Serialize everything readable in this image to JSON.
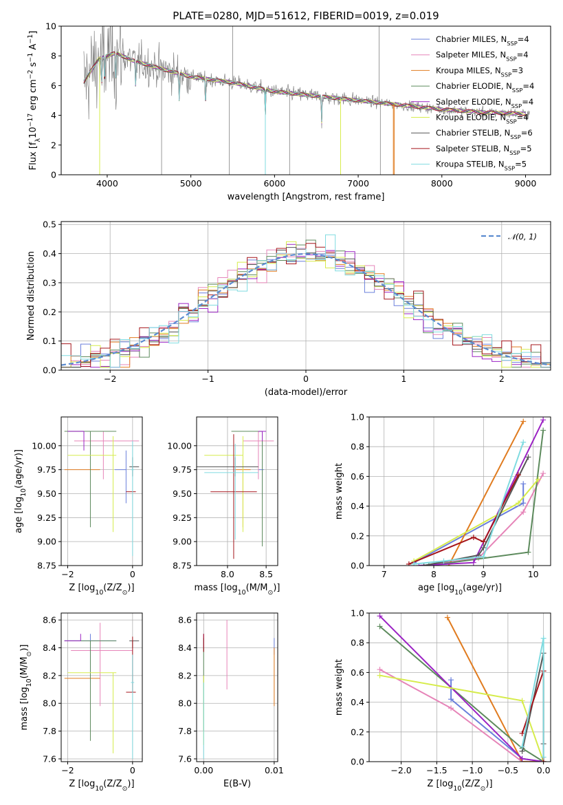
{
  "title": "PLATE=0280, MJD=51612, FIBERID=0019, z=0.019",
  "series_names": [
    {
      "pre": "Chabrier MILES, N",
      "sub": "SSP",
      "post": "=4",
      "color": "#6a7fdb"
    },
    {
      "pre": "Salpeter MILES, N",
      "sub": "SSP",
      "post": "=4",
      "color": "#e684b8"
    },
    {
      "pre": "Kroupa MILES, N",
      "sub": "SSP",
      "post": "=3",
      "color": "#e07b1f"
    },
    {
      "pre": "Chabrier ELODIE, N",
      "sub": "SSP",
      "post": "=4",
      "color": "#5c8a5c"
    },
    {
      "pre": "Salpeter ELODIE, N",
      "sub": "SSP",
      "post": "=4",
      "color": "#9b22c4"
    },
    {
      "pre": "Kroupa ELODIE, N",
      "sub": "SSP",
      "post": "=4",
      "color": "#d6ec4b"
    },
    {
      "pre": "Chabrier STELIB, N",
      "sub": "SSP",
      "post": "=6",
      "color": "#555555"
    },
    {
      "pre": "Salpeter STELIB, N",
      "sub": "SSP",
      "post": "=5",
      "color": "#a5141a"
    },
    {
      "pre": "Kroupa STELIB, N",
      "sub": "SSP",
      "post": "=5",
      "color": "#7fdbe0"
    }
  ],
  "chart_data": [
    {
      "id": "spectrum",
      "type": "line",
      "xlabel": "wavelength [Angstrom, rest frame]",
      "ylabel": {
        "pre": "Flux [f",
        "sub": "λ",
        "mid": "10",
        "sup": "−17",
        "post": " erg cm",
        "sup2": "−2",
        "post2": " s",
        "sup3": "−1",
        "post3": " A",
        "sup4": "−1",
        "post4": "]"
      },
      "xlim": [
        3450,
        9300
      ],
      "ylim": [
        0,
        10
      ],
      "xticks": [
        4000,
        5000,
        6000,
        7000,
        8000,
        9000
      ],
      "yticks": [
        0,
        2,
        4,
        6,
        8,
        10
      ],
      "data_color": "#808080",
      "continuum_knots": {
        "x": [
          3750,
          3900,
          4000,
          4100,
          4300,
          4600,
          4800,
          5000,
          5500,
          6000,
          6500,
          7000,
          7500,
          8000,
          8500,
          9000
        ],
        "y": [
          6.5,
          7.8,
          8.0,
          8.2,
          7.7,
          7.2,
          6.9,
          6.6,
          6.2,
          5.6,
          5.3,
          5.0,
          4.7,
          4.4,
          4.2,
          4.1
        ]
      }
    },
    {
      "id": "residuals",
      "type": "histogram",
      "xlabel": "(data-model)/error",
      "ylabel": "Normed distribution",
      "xlim": [
        -2.5,
        2.5
      ],
      "ylim": [
        0,
        0.51
      ],
      "xticks": [
        -2,
        -1,
        0,
        1,
        2
      ],
      "yticks": [
        0.0,
        0.1,
        0.2,
        0.3,
        0.4,
        0.5
      ],
      "legend": "𝒩(0, 1)",
      "normal_color": "#5b8bd0"
    },
    {
      "id": "age-vs-Z",
      "type": "errorbar",
      "xlabel": {
        "pre": "Z [log",
        "sub": "10",
        "post": "(Z/Z",
        "sub2": "⊙",
        "post2": ")]"
      },
      "ylabel": {
        "pre": "age  [log",
        "sub": "10",
        "post": "(age/yr)]"
      },
      "xlim": [
        -2.2,
        0.3
      ],
      "ylim": [
        8.75,
        10.3
      ],
      "xticks": [
        -2,
        0
      ],
      "yticks": [
        8.75,
        9.0,
        9.25,
        9.5,
        9.75,
        10.0
      ],
      "points": [
        {
          "s": 0,
          "x": -0.2,
          "xe": [
            0.35,
            0.0
          ],
          "y": 9.75,
          "ye": [
            0.35,
            0.2
          ]
        },
        {
          "s": 1,
          "x": -0.9,
          "xe": [
            0.9,
            1.1
          ],
          "y": 10.05,
          "ye": [
            0.4,
            0.1
          ]
        },
        {
          "s": 2,
          "x": -1.0,
          "xe": [
            1.1,
            0.0
          ],
          "y": 9.75,
          "ye": [
            0.0,
            0.0
          ]
        },
        {
          "s": 3,
          "x": -1.3,
          "xe": [
            0.8,
            0.8
          ],
          "y": 10.15,
          "ye": [
            1.0,
            0.0
          ]
        },
        {
          "s": 4,
          "x": -1.5,
          "xe": [
            0.5,
            0.0
          ],
          "y": 10.15,
          "ye": [
            0.2,
            0.0
          ]
        },
        {
          "s": 5,
          "x": -0.6,
          "xe": [
            1.4,
            0.1
          ],
          "y": 9.9,
          "ye": [
            0.8,
            0.2
          ]
        },
        {
          "s": 6,
          "x": 0.0,
          "xe": [
            0.1,
            0.2
          ],
          "y": 9.78,
          "ye": [
            0.1,
            0.1
          ]
        },
        {
          "s": 7,
          "x": 0.0,
          "xe": [
            0.2,
            0.1
          ],
          "y": 9.52,
          "ye": [
            0.0,
            0.0
          ]
        },
        {
          "s": 8,
          "x": 0.0,
          "xe": [
            0.05,
            0.05
          ],
          "y": 9.75,
          "ye": [
            0.9,
            0.3
          ]
        }
      ]
    },
    {
      "id": "age-vs-mass",
      "type": "errorbar",
      "xlabel": {
        "pre": "mass [log",
        "sub": "10",
        "post": "(M/M",
        "sub2": "⊙",
        "post2": ")]"
      },
      "ylabel": "",
      "xlim": [
        7.6,
        8.65
      ],
      "ylim": [
        8.75,
        10.3
      ],
      "xticks": [
        8.0,
        8.5
      ],
      "yticks": [
        8.75,
        9.0,
        9.25,
        9.5,
        9.75,
        10.0
      ],
      "points": [
        {
          "s": 0,
          "x": 8.45,
          "xe": [
            0.05,
            0.02
          ],
          "y": 9.75,
          "ye": [
            0.3,
            0.3
          ]
        },
        {
          "s": 1,
          "x": 8.4,
          "xe": [
            0.2,
            0.2
          ],
          "y": 10.05,
          "ye": [
            0.4,
            0.1
          ]
        },
        {
          "s": 2,
          "x": 8.2,
          "xe": [
            0.1,
            0.1
          ],
          "y": 9.75,
          "ye": [
            0.6,
            0.1
          ]
        },
        {
          "s": 3,
          "x": 8.45,
          "xe": [
            0.4,
            0.0
          ],
          "y": 10.15,
          "ye": [
            1.2,
            0.0
          ]
        },
        {
          "s": 4,
          "x": 8.45,
          "xe": [
            0.05,
            0.05
          ],
          "y": 10.15,
          "ye": [
            0.1,
            0.0
          ]
        },
        {
          "s": 5,
          "x": 8.2,
          "xe": [
            0.5,
            0.0
          ],
          "y": 9.9,
          "ye": [
            0.8,
            0.2
          ]
        },
        {
          "s": 6,
          "x": 8.1,
          "xe": [
            0.5,
            0.3
          ],
          "y": 9.78,
          "ye": [
            0.1,
            0.1
          ]
        },
        {
          "s": 7,
          "x": 8.08,
          "xe": [
            0.3,
            0.3
          ],
          "y": 9.52,
          "ye": [
            0.7,
            0.6
          ]
        },
        {
          "s": 8,
          "x": 8.1,
          "xe": [
            0.4,
            0.3
          ],
          "y": 9.72,
          "ye": [
            0.7,
            0.3
          ]
        }
      ]
    },
    {
      "id": "weight-vs-age",
      "type": "line",
      "xlabel": {
        "pre": "age  [log",
        "sub": "10",
        "post": "(age/yr)]"
      },
      "ylabel": "mass weight",
      "xlim": [
        6.7,
        10.35
      ],
      "ylim": [
        0,
        1.0
      ],
      "xticks": [
        7,
        8,
        9,
        10
      ],
      "yticks": [
        0.0,
        0.2,
        0.4,
        0.6,
        0.8,
        1.0
      ],
      "series": [
        {
          "s": 0,
          "x": [
            7.6,
            9.8,
            9.8
          ],
          "y": [
            0.02,
            0.42,
            0.55
          ]
        },
        {
          "s": 1,
          "x": [
            7.8,
            8.9,
            9.8,
            10.2
          ],
          "y": [
            0.0,
            0.05,
            0.36,
            0.62
          ]
        },
        {
          "s": 2,
          "x": [
            8.3,
            9.8
          ],
          "y": [
            0.0,
            0.97
          ]
        },
        {
          "s": 3,
          "x": [
            7.9,
            9.9,
            10.2
          ],
          "y": [
            0.0,
            0.09,
            0.91
          ]
        },
        {
          "s": 4,
          "x": [
            7.7,
            8.8,
            10.2
          ],
          "y": [
            0.0,
            0.02,
            0.98
          ]
        },
        {
          "s": 5,
          "x": [
            7.6,
            9.7,
            10.1
          ],
          "y": [
            0.03,
            0.42,
            0.58
          ]
        },
        {
          "s": 6,
          "x": [
            7.8,
            8.9,
            9.0,
            9.9
          ],
          "y": [
            0.0,
            0.07,
            0.12,
            0.73
          ]
        },
        {
          "s": 7,
          "x": [
            7.5,
            8.8,
            9.0,
            9.7
          ],
          "y": [
            0.01,
            0.19,
            0.16,
            0.61
          ]
        },
        {
          "s": 8,
          "x": [
            7.6,
            8.2,
            9.0,
            9.8
          ],
          "y": [
            0.01,
            0.03,
            0.06,
            0.83
          ]
        }
      ]
    },
    {
      "id": "mass-vs-Z",
      "type": "errorbar",
      "xlabel": {
        "pre": "Z [log",
        "sub": "10",
        "post": "(Z/Z",
        "sub2": "⊙",
        "post2": ")]"
      },
      "ylabel": {
        "pre": "mass [log",
        "sub": "10",
        "post": "(M/M",
        "sub2": "⊙",
        "post2": ")]"
      },
      "xlim": [
        -2.2,
        0.3
      ],
      "ylim": [
        7.58,
        8.65
      ],
      "xticks": [
        -2,
        0
      ],
      "yticks": [
        7.6,
        7.8,
        8.0,
        8.2,
        8.4,
        8.6
      ],
      "points": [
        {
          "s": 0,
          "x": -1.3,
          "xe": [
            0.8,
            0.8
          ],
          "y": 8.45,
          "ye": [
            0.3,
            0.05
          ]
        },
        {
          "s": 1,
          "x": -1.0,
          "xe": [
            0.9,
            1.0
          ],
          "y": 8.38,
          "ye": [
            0.4,
            0.2
          ]
        },
        {
          "s": 2,
          "x": -1.0,
          "xe": [
            1.1,
            0.0
          ],
          "y": 8.18,
          "ye": [
            0.0,
            0.0
          ]
        },
        {
          "s": 3,
          "x": -1.3,
          "xe": [
            0.8,
            0.8
          ],
          "y": 8.45,
          "ye": [
            0.72,
            0.0
          ]
        },
        {
          "s": 4,
          "x": -1.6,
          "xe": [
            0.5,
            0.0
          ],
          "y": 8.45,
          "ye": [
            0.0,
            0.05
          ]
        },
        {
          "s": 5,
          "x": -0.6,
          "xe": [
            1.4,
            0.1
          ],
          "y": 8.22,
          "ye": [
            0.58,
            0.0
          ]
        },
        {
          "s": 6,
          "x": 0.0,
          "xe": [
            0.1,
            0.2
          ],
          "y": 8.45,
          "ye": [
            0.05,
            0.0
          ]
        },
        {
          "s": 7,
          "x": 0.0,
          "xe": [
            0.2,
            0.1
          ],
          "y": 8.08,
          "ye": [
            0.0,
            0.4
          ]
        },
        {
          "s": 8,
          "x": 0.0,
          "xe": [
            0.05,
            0.05
          ],
          "y": 8.15,
          "ye": [
            0.55,
            0.2
          ]
        }
      ]
    },
    {
      "id": "mass-vs-EBV",
      "type": "errorbar",
      "xlabel": "E(B-V)",
      "ylabel": "",
      "xlim": [
        -0.001,
        0.0105
      ],
      "ylim": [
        7.58,
        8.65
      ],
      "xticks": [
        0.0,
        0.01
      ],
      "yticks": [
        7.6,
        7.8,
        8.0,
        8.2,
        8.4,
        8.6
      ],
      "points": [
        {
          "s": 0,
          "x": 0.01,
          "xe": [
            0,
            0
          ],
          "y": 8.35,
          "ye": [
            0.0,
            0.12
          ]
        },
        {
          "s": 1,
          "x": 0.0033,
          "xe": [
            0,
            0
          ],
          "y": 8.35,
          "ye": [
            0.25,
            0.25
          ]
        },
        {
          "s": 2,
          "x": 0.01,
          "xe": [
            0,
            0
          ],
          "y": 8.2,
          "ye": [
            0.22,
            0.2
          ]
        },
        {
          "s": 3,
          "x": 0.0,
          "xe": [
            0,
            0
          ],
          "y": 8.4,
          "ye": [
            0.6,
            0.0
          ]
        },
        {
          "s": 4,
          "x": 0.0,
          "xe": [
            0,
            0
          ],
          "y": 8.45,
          "ye": [
            0.05,
            0.05
          ]
        },
        {
          "s": 5,
          "x": 0.0,
          "xe": [
            0,
            0
          ],
          "y": 8.2,
          "ye": [
            0.5,
            0.0
          ]
        },
        {
          "s": 6,
          "x": 0.0,
          "xe": [
            0,
            0
          ],
          "y": 8.42,
          "ye": [
            0.05,
            0.05
          ]
        },
        {
          "s": 7,
          "x": 0.0,
          "xe": [
            0,
            0
          ],
          "y": 8.42,
          "ye": [
            0.05,
            0.08
          ]
        },
        {
          "s": 8,
          "x": 0.0,
          "xe": [
            0,
            0
          ],
          "y": 8.15,
          "ye": [
            0.55,
            0.0
          ]
        }
      ]
    },
    {
      "id": "weight-vs-Z",
      "type": "line",
      "xlabel": {
        "pre": "Z [log",
        "sub": "10",
        "post": "(Z/Z",
        "sub2": "⊙",
        "post2": ")]"
      },
      "ylabel": "mass weight",
      "xlim": [
        -2.45,
        0.1
      ],
      "ylim": [
        0,
        1.0
      ],
      "xticks": [
        -2.0,
        -1.5,
        -1.0,
        -0.5,
        0.0
      ],
      "yticks": [
        0.0,
        0.2,
        0.4,
        0.6,
        0.8,
        1.0
      ],
      "series": [
        {
          "s": 0,
          "x": [
            -1.3,
            -1.3,
            -0.3,
            0.0
          ],
          "y": [
            0.55,
            0.42,
            0.02,
            0.0
          ]
        },
        {
          "s": 1,
          "x": [
            -2.3,
            -1.3,
            -0.3,
            0.0
          ],
          "y": [
            0.62,
            0.36,
            0.0,
            0.0
          ]
        },
        {
          "s": 2,
          "x": [
            -1.35,
            -0.3,
            0.0
          ],
          "y": [
            0.97,
            0.0,
            0.0
          ]
        },
        {
          "s": 3,
          "x": [
            -2.3,
            -0.3,
            0.0
          ],
          "y": [
            0.91,
            0.09,
            0.0
          ]
        },
        {
          "s": 4,
          "x": [
            -2.3,
            -0.3,
            0.0
          ],
          "y": [
            0.98,
            0.02,
            0.0
          ]
        },
        {
          "s": 5,
          "x": [
            -2.3,
            -0.3,
            0.0
          ],
          "y": [
            0.58,
            0.41,
            0.0
          ]
        },
        {
          "s": 6,
          "x": [
            -0.3,
            0.0,
            0.0
          ],
          "y": [
            0.07,
            0.73,
            0.12
          ]
        },
        {
          "s": 7,
          "x": [
            -0.3,
            0.0,
            0.0
          ],
          "y": [
            0.19,
            0.61,
            0.0
          ]
        },
        {
          "s": 8,
          "x": [
            -0.3,
            0.0,
            0.0
          ],
          "y": [
            0.1,
            0.83,
            0.03
          ]
        }
      ]
    }
  ]
}
